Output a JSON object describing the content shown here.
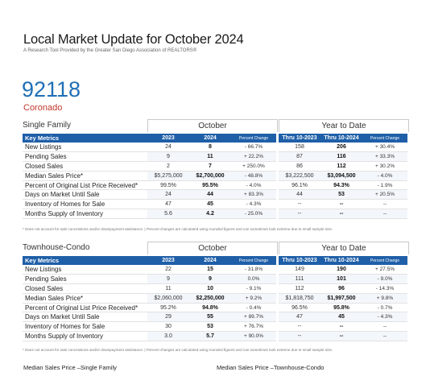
{
  "header": {
    "title": "Local Market Update for October 2024",
    "subtitle": "A Research Tool Provided by the Greater San Diego Association of REALTORS®",
    "zip": "92118",
    "city": "Coronado"
  },
  "columns": {
    "key_metrics": "Key Metrics",
    "y2023": "2023",
    "y2024": "2024",
    "pct": "Percent Change",
    "ytd2023": "Thru 10-2023",
    "ytd2024": "Thru 10-2024",
    "october": "October",
    "ytd": "Year to Date"
  },
  "single_family": {
    "label": "Single Family",
    "rows": [
      {
        "metric": "New Listings",
        "o23": "24",
        "o24": "8",
        "opc": "- 66.7%",
        "y23": "158",
        "y24": "206",
        "ypc": "+ 30.4%"
      },
      {
        "metric": "Pending Sales",
        "o23": "9",
        "o24": "11",
        "opc": "+ 22.2%",
        "y23": "87",
        "y24": "116",
        "ypc": "+ 33.3%"
      },
      {
        "metric": "Closed Sales",
        "o23": "2",
        "o24": "7",
        "opc": "+ 250.0%",
        "y23": "86",
        "y24": "112",
        "ypc": "+ 30.2%"
      },
      {
        "metric": "Median Sales Price*",
        "o23": "$5,275,000",
        "o24": "$2,700,000",
        "opc": "- 48.8%",
        "y23": "$3,222,500",
        "y24": "$3,094,500",
        "ypc": "- 4.0%"
      },
      {
        "metric": "Percent of Original List Price Received*",
        "o23": "99.5%",
        "o24": "95.5%",
        "opc": "- 4.0%",
        "y23": "96.1%",
        "y24": "94.3%",
        "ypc": "- 1.9%"
      },
      {
        "metric": "Days on Market Until Sale",
        "o23": "24",
        "o24": "44",
        "opc": "+ 83.3%",
        "y23": "44",
        "y24": "53",
        "ypc": "+ 20.5%"
      },
      {
        "metric": "Inventory of Homes for Sale",
        "o23": "47",
        "o24": "45",
        "opc": "- 4.3%",
        "y23": "--",
        "y24": "--",
        "ypc": "--"
      },
      {
        "metric": "Months Supply of Inventory",
        "o23": "5.6",
        "o24": "4.2",
        "opc": "- 25.0%",
        "y23": "--",
        "y24": "--",
        "ypc": "--"
      }
    ]
  },
  "townhouse": {
    "label": "Townhouse-Condo",
    "rows": [
      {
        "metric": "New Listings",
        "o23": "22",
        "o24": "15",
        "opc": "- 31.8%",
        "y23": "149",
        "y24": "190",
        "ypc": "+ 27.5%"
      },
      {
        "metric": "Pending Sales",
        "o23": "9",
        "o24": "9",
        "opc": "0.0%",
        "y23": "111",
        "y24": "101",
        "ypc": "- 9.0%"
      },
      {
        "metric": "Closed Sales",
        "o23": "11",
        "o24": "10",
        "opc": "- 9.1%",
        "y23": "112",
        "y24": "96",
        "ypc": "- 14.3%"
      },
      {
        "metric": "Median Sales Price*",
        "o23": "$2,060,000",
        "o24": "$2,250,000",
        "opc": "+ 9.2%",
        "y23": "$1,818,750",
        "y24": "$1,997,500",
        "ypc": "+ 9.8%"
      },
      {
        "metric": "Percent of Original List Price Received*",
        "o23": "95.2%",
        "o24": "94.8%",
        "opc": "- 0.4%",
        "y23": "96.5%",
        "y24": "95.8%",
        "ypc": "- 0.7%"
      },
      {
        "metric": "Days on Market Until Sale",
        "o23": "29",
        "o24": "55",
        "opc": "+ 89.7%",
        "y23": "47",
        "y24": "45",
        "ypc": "- 4.3%"
      },
      {
        "metric": "Inventory of Homes for Sale",
        "o23": "30",
        "o24": "53",
        "opc": "+ 76.7%",
        "y23": "--",
        "y24": "--",
        "ypc": "--"
      },
      {
        "metric": "Months Supply of Inventory",
        "o23": "3.0",
        "o24": "5.7",
        "opc": "+ 90.0%",
        "y23": "--",
        "y24": "--",
        "ypc": "--"
      }
    ]
  },
  "footnote": "* Does not account for sale concessions and/or downpayment assistance. | Percent changes are calculated using rounded figures and can sometimes look extreme due to small sample size.",
  "bottom": {
    "left": "Median Sales Price –Single Family",
    "right": "Median Sales Price –Townhouse-Condo"
  }
}
